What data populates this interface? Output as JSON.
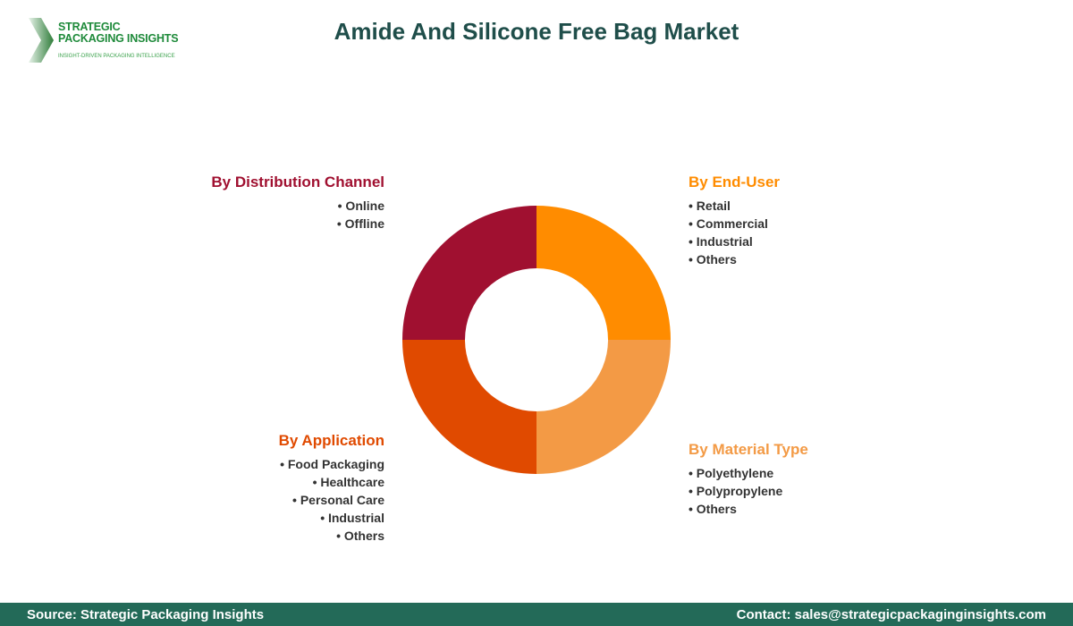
{
  "logo": {
    "line1": "STRATEGIC",
    "line2": "PACKAGING INSIGHTS",
    "tagline": "INSIGHT-DRIVEN PACKAGING INTELLIGENCE"
  },
  "title": "Amide And Silicone Free Bag Market",
  "chart_data": {
    "type": "pie",
    "donut": true,
    "title": "Amide And Silicone Free Bag Market",
    "slices": [
      {
        "name": "By End-User",
        "value": 25,
        "color": "#FF8C00",
        "items": [
          "Retail",
          "Commercial",
          "Industrial",
          "Others"
        ]
      },
      {
        "name": "By Material Type",
        "value": 25,
        "color": "#F39A45",
        "items": [
          "Polyethylene",
          "Polypropylene",
          "Others"
        ]
      },
      {
        "name": "By Application",
        "value": 25,
        "color": "#E04A00",
        "items": [
          "Food Packaging",
          "Healthcare",
          "Personal Care",
          "Industrial",
          "Others"
        ]
      },
      {
        "name": "By Distribution Channel",
        "value": 25,
        "color": "#A01030",
        "items": [
          "Online",
          "Offline"
        ]
      }
    ]
  },
  "footer": {
    "source": "Source: Strategic Packaging Insights",
    "contact": "Contact: sales@strategicpackaginginsights.com"
  }
}
